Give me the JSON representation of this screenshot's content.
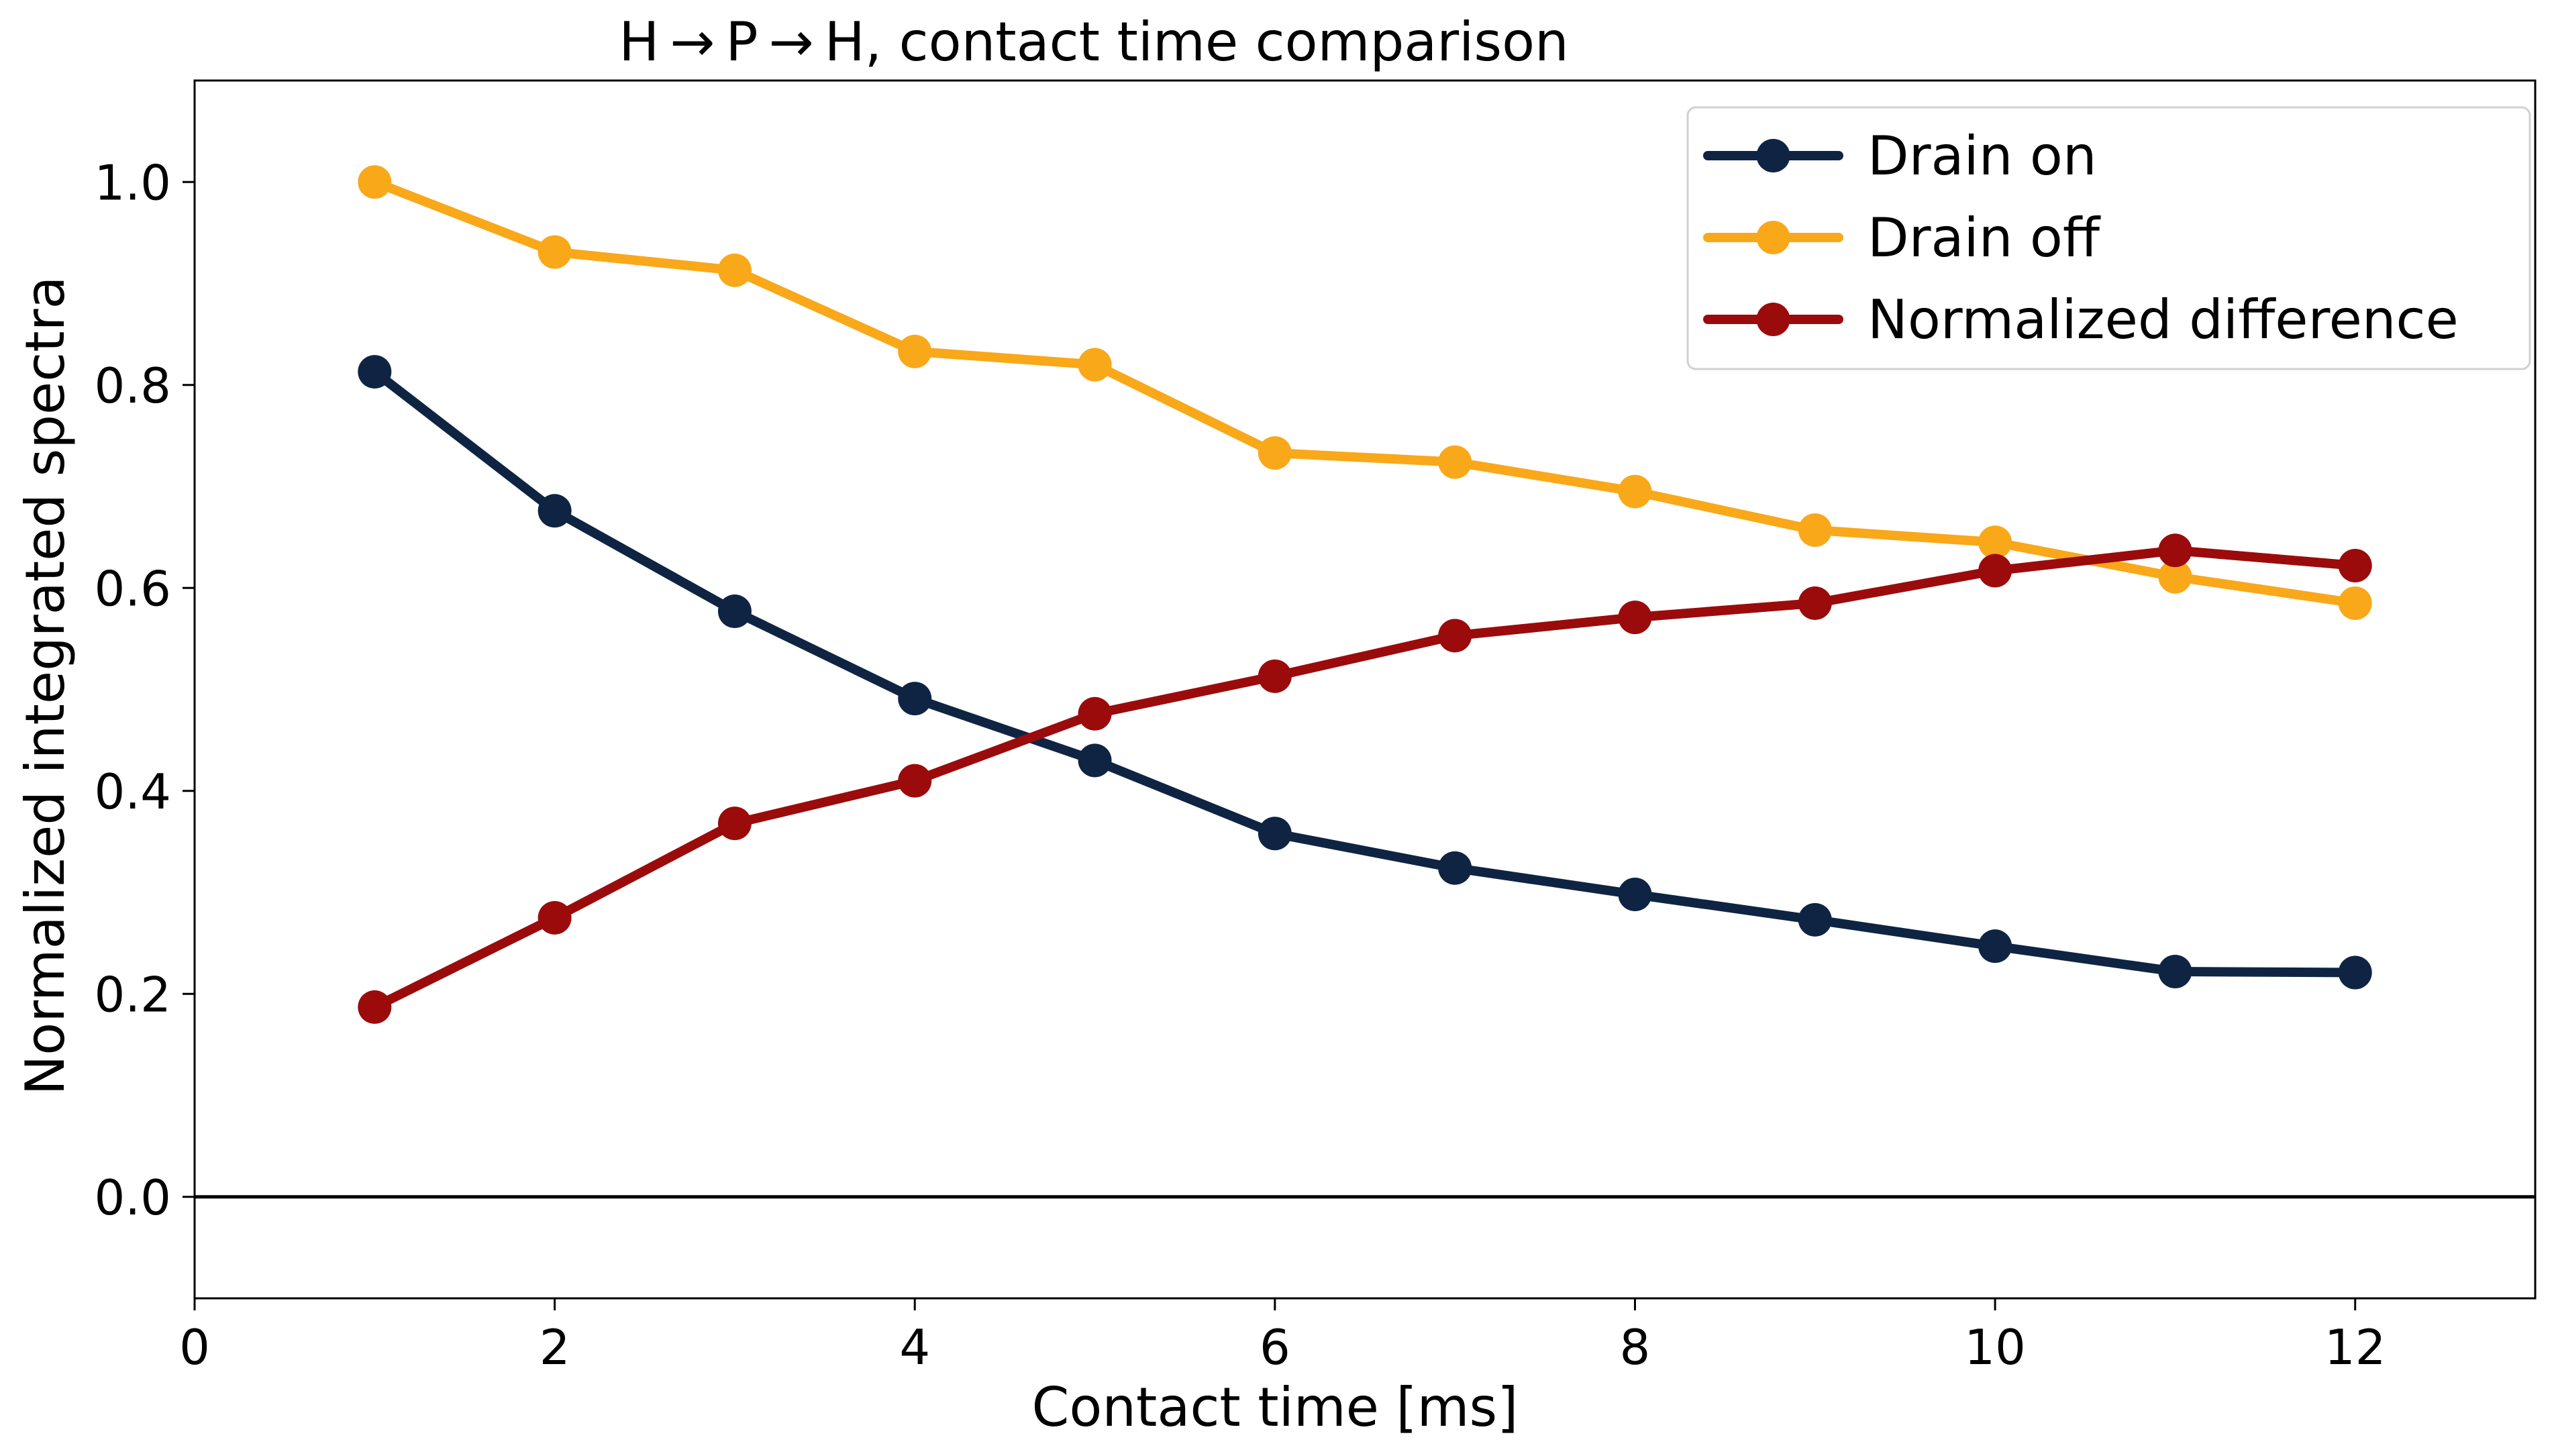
{
  "chart_data": {
    "type": "line",
    "title": "H → P → H, contact time comparison",
    "xlabel": "Contact time [ms]",
    "ylabel": "Normalized integrated spectra",
    "xlim": [
      0,
      13
    ],
    "ylim": [
      -0.1,
      1.1
    ],
    "xticks": [
      0,
      2,
      4,
      6,
      8,
      10,
      12
    ],
    "xtick_labels": [
      "0",
      "2",
      "4",
      "6",
      "8",
      "10",
      "12"
    ],
    "yticks": [
      0.0,
      0.2,
      0.4,
      0.6,
      0.8,
      1.0
    ],
    "ytick_labels": [
      "0.0",
      "0.2",
      "0.4",
      "0.6",
      "0.8",
      "1.0"
    ],
    "hline": 0.0,
    "grid": false,
    "legend_position": "top-right",
    "x": [
      1,
      2,
      3,
      4,
      5,
      6,
      7,
      8,
      9,
      10,
      11,
      12
    ],
    "series": [
      {
        "name": "Drain on",
        "color": "#0f2443",
        "values": [
          0.813,
          0.676,
          0.577,
          0.491,
          0.43,
          0.358,
          0.324,
          0.298,
          0.273,
          0.247,
          0.222,
          0.221
        ]
      },
      {
        "name": "Drain off",
        "color": "#f9a81a",
        "values": [
          1.0,
          0.931,
          0.913,
          0.833,
          0.82,
          0.733,
          0.724,
          0.695,
          0.657,
          0.645,
          0.611,
          0.585
        ]
      },
      {
        "name": "Normalized difference",
        "color": "#9b0b0b",
        "values": [
          0.187,
          0.275,
          0.368,
          0.41,
          0.476,
          0.513,
          0.553,
          0.571,
          0.585,
          0.617,
          0.637,
          0.622
        ]
      }
    ]
  }
}
